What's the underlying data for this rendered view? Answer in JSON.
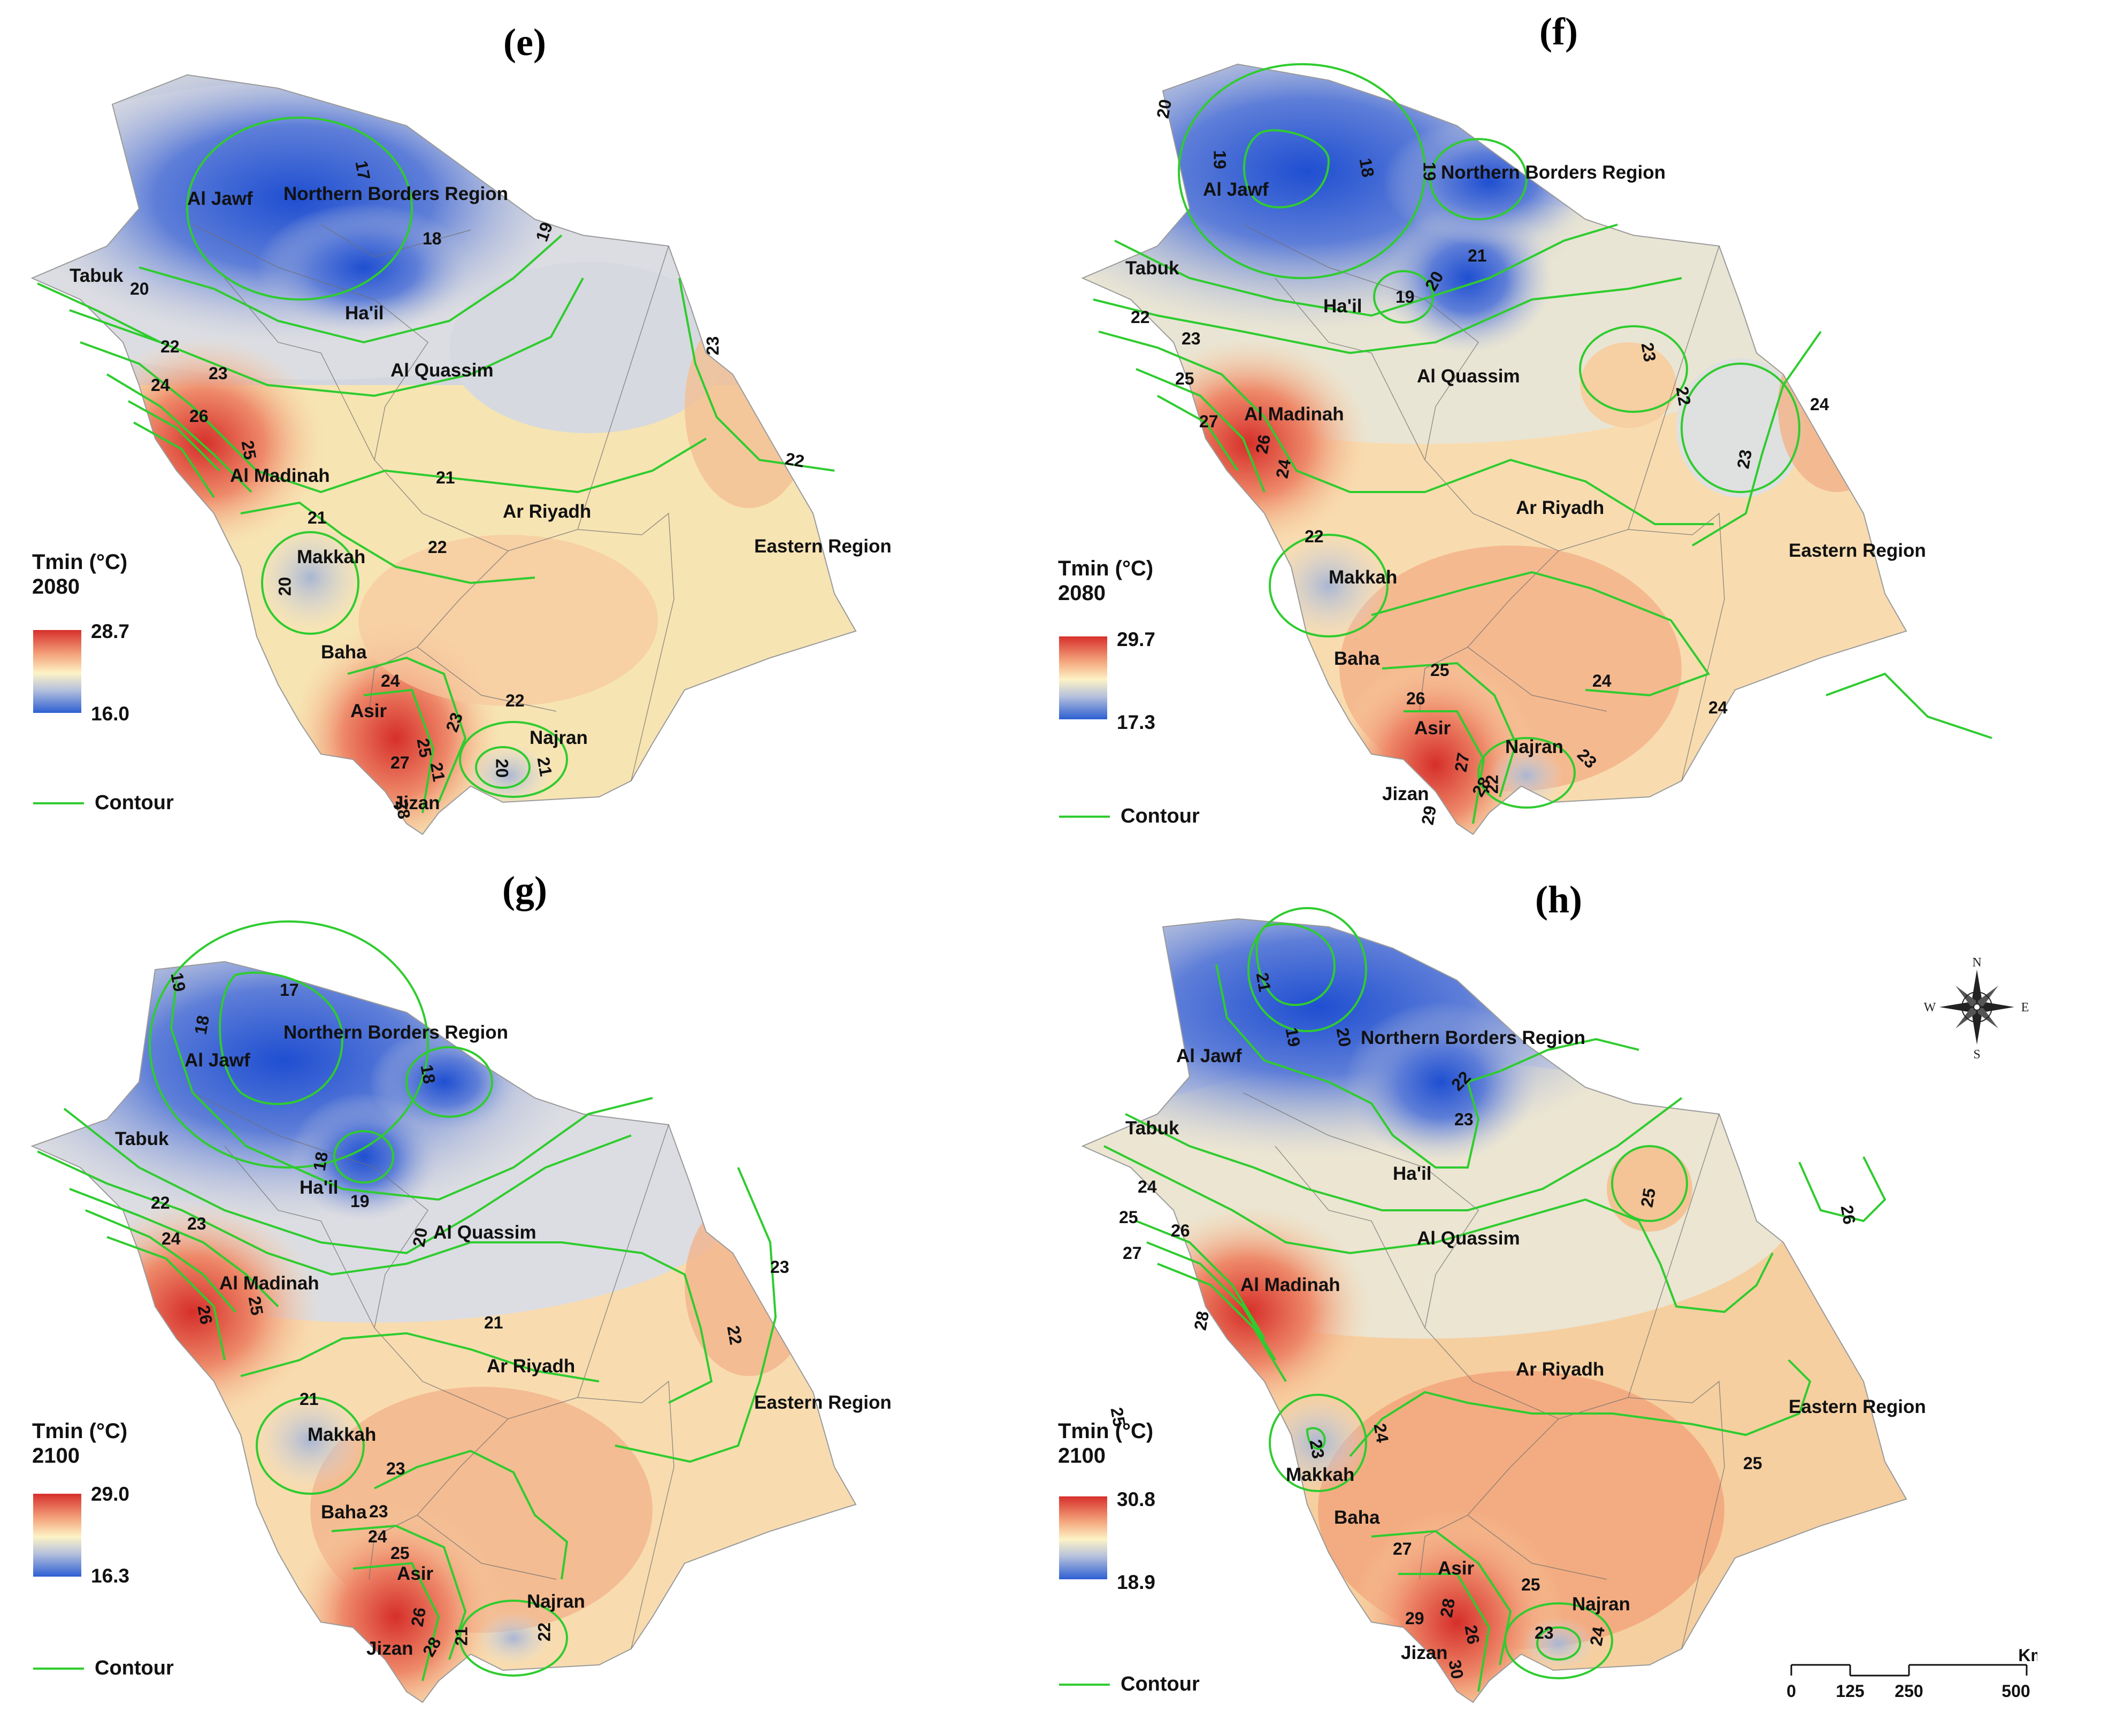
{
  "panels": [
    {
      "id": "e",
      "label": "(e)",
      "legend": {
        "title": "Tmin (°C)",
        "year": "2080",
        "max": "28.7",
        "min": "16.0"
      },
      "contour_label": "Contour",
      "regions": [
        "Al Jawf",
        "Northern Borders Region",
        "Tabuk",
        "Ha'il",
        "Al Quassim",
        "Al Madinah",
        "Ar Riyadh",
        "Eastern Region",
        "Makkah",
        "Baha",
        "Asir",
        "Najran",
        "Jizan"
      ],
      "contour_values": [
        "17",
        "18",
        "19",
        "20",
        "22",
        "23",
        "24",
        "26",
        "25",
        "21",
        "21",
        "22",
        "20",
        "24",
        "23",
        "22",
        "22",
        "25",
        "27",
        "28",
        "20",
        "21",
        "21",
        "23"
      ]
    },
    {
      "id": "f",
      "label": "(f)",
      "legend": {
        "title": "Tmin (°C)",
        "year": "2080",
        "max": "29.7",
        "min": "17.3"
      },
      "contour_label": "Contour",
      "regions": [
        "Al Jawf",
        "Northern Borders Region",
        "Tabuk",
        "Ha'il",
        "Al Quassim",
        "Al Madinah",
        "Ar Riyadh",
        "Eastern Region",
        "Makkah",
        "Baha",
        "Asir",
        "Najran",
        "Jizan"
      ],
      "contour_values": [
        "20",
        "19",
        "18",
        "19",
        "21",
        "19",
        "20",
        "22",
        "23",
        "25",
        "27",
        "26",
        "24",
        "23",
        "22",
        "24",
        "23",
        "22",
        "25",
        "24",
        "26",
        "27",
        "28",
        "29",
        "22",
        "23",
        "24"
      ]
    },
    {
      "id": "g",
      "label": "(g)",
      "legend": {
        "title": "Tmin (°C)",
        "year": "2100",
        "max": "29.0",
        "min": "16.3"
      },
      "contour_label": "Contour",
      "regions": [
        "Al Jawf",
        "Northern Borders Region",
        "Tabuk",
        "Ha'il",
        "Al Quassim",
        "Al Madinah",
        "Ar Riyadh",
        "Eastern Region",
        "Makkah",
        "Baha",
        "Asir",
        "Najran",
        "Jizan"
      ],
      "contour_values": [
        "19",
        "17",
        "18",
        "18",
        "18",
        "19",
        "20",
        "22",
        "23",
        "24",
        "26",
        "25",
        "21",
        "21",
        "23",
        "23",
        "24",
        "25",
        "26",
        "28",
        "21",
        "22",
        "23",
        "22"
      ]
    },
    {
      "id": "h",
      "label": "(h)",
      "legend": {
        "title": "Tmin (°C)",
        "year": "2100",
        "max": "30.8",
        "min": "18.9"
      },
      "contour_label": "Contour",
      "regions": [
        "Al Jawf",
        "Northern Borders Region",
        "Tabuk",
        "Ha'il",
        "Al Quassim",
        "Al Madinah",
        "Ar Riyadh",
        "Eastern Region",
        "Makkah",
        "Baha",
        "Asir",
        "Najran",
        "Jizan"
      ],
      "contour_values": [
        "21",
        "19",
        "20",
        "22",
        "23",
        "24",
        "25",
        "26",
        "27",
        "28",
        "25",
        "25",
        "23",
        "24",
        "27",
        "25",
        "29",
        "28",
        "26",
        "30",
        "23",
        "24",
        "25",
        "26"
      ]
    }
  ],
  "compass": {
    "n": "N",
    "s": "S",
    "e": "E",
    "w": "W"
  },
  "scale": {
    "ticks": [
      "0",
      "125",
      "250",
      "500"
    ],
    "unit": "Km"
  },
  "colors": {
    "hot": "#d7302b",
    "warm": "#f4a57c",
    "mid": "#fdf3c6",
    "cool": "#b7c2dc",
    "cold": "#2d5fd3",
    "contour": "#2fcc2f"
  }
}
